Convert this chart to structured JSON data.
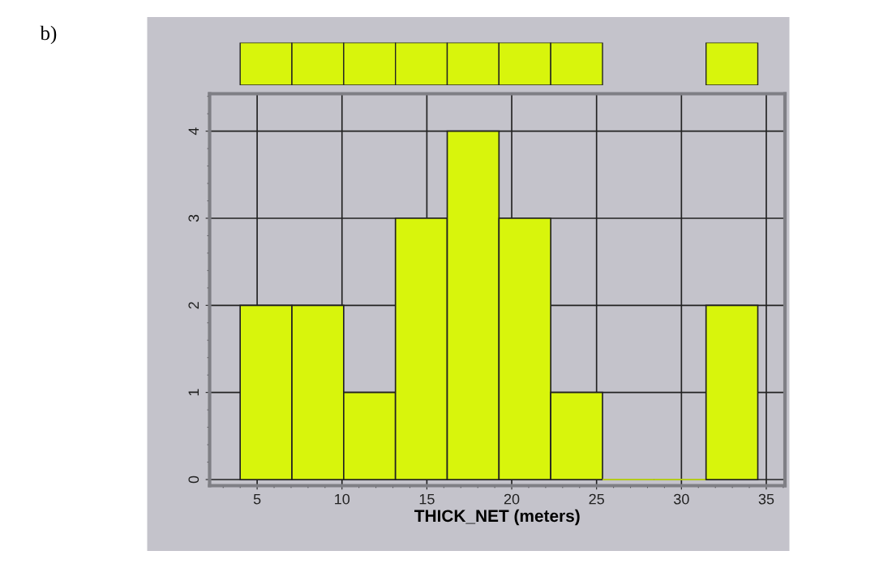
{
  "chart_data": {
    "type": "histogram",
    "xlabel": "THICK_NET (meters)",
    "annotations": [
      "b)"
    ],
    "bins": [
      4.0,
      7.05,
      10.1,
      13.15,
      16.2,
      19.25,
      22.3,
      25.35,
      28.4,
      31.45,
      34.5
    ],
    "values": [
      2,
      2,
      1,
      3,
      4,
      3,
      1,
      0,
      0,
      2
    ],
    "color": "#d8f50c",
    "xlim": [
      2.2,
      36.1
    ],
    "xticks": [
      5,
      10,
      15,
      20,
      25,
      30,
      35
    ],
    "ylim": [
      -0.07,
      4.43
    ],
    "yticks": [
      0,
      1,
      2,
      3,
      4
    ],
    "grid": true
  }
}
